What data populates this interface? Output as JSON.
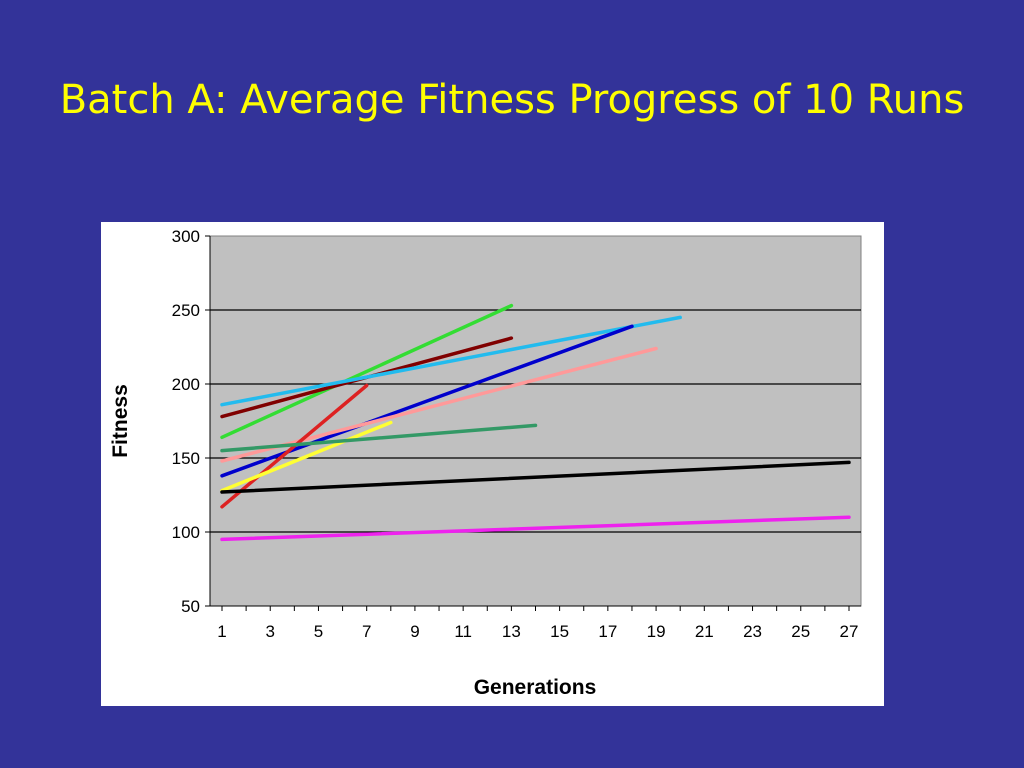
{
  "slide": {
    "title": "Batch A: Average Fitness Progress of 10 Runs"
  },
  "chart_data": {
    "type": "line",
    "title": "",
    "xlabel": "Generations",
    "ylabel": "Fitness",
    "xlim": [
      1,
      27
    ],
    "ylim": [
      50,
      300
    ],
    "x_ticks": [
      1,
      3,
      5,
      7,
      9,
      11,
      13,
      15,
      17,
      19,
      21,
      23,
      25,
      27
    ],
    "y_ticks": [
      50,
      100,
      150,
      200,
      250,
      300
    ],
    "y_gridlines": [
      100,
      150,
      200,
      250
    ],
    "grid": true,
    "legend": "none",
    "plot_background": "#c0c0c0",
    "series": [
      {
        "color": "#33dd33",
        "points": [
          [
            1,
            164
          ],
          [
            13,
            253
          ]
        ]
      },
      {
        "color": "#800000",
        "points": [
          [
            1,
            178
          ],
          [
            13,
            231
          ]
        ]
      },
      {
        "color": "#22bbee",
        "points": [
          [
            1,
            186
          ],
          [
            20,
            245
          ]
        ]
      },
      {
        "color": "#0000cc",
        "points": [
          [
            1,
            138
          ],
          [
            18,
            239
          ]
        ]
      },
      {
        "color": "#ff9999",
        "points": [
          [
            1,
            148
          ],
          [
            19,
            224
          ]
        ]
      },
      {
        "color": "#dd2222",
        "points": [
          [
            1,
            117
          ],
          [
            7,
            199
          ]
        ]
      },
      {
        "color": "#ffff33",
        "points": [
          [
            1,
            128
          ],
          [
            8,
            174
          ]
        ]
      },
      {
        "color": "#339966",
        "points": [
          [
            1,
            155
          ],
          [
            14,
            172
          ]
        ]
      },
      {
        "color": "#000000",
        "points": [
          [
            1,
            127
          ],
          [
            27,
            147
          ]
        ]
      },
      {
        "color": "#ee22ee",
        "points": [
          [
            1,
            95
          ],
          [
            27,
            110
          ]
        ]
      }
    ]
  }
}
